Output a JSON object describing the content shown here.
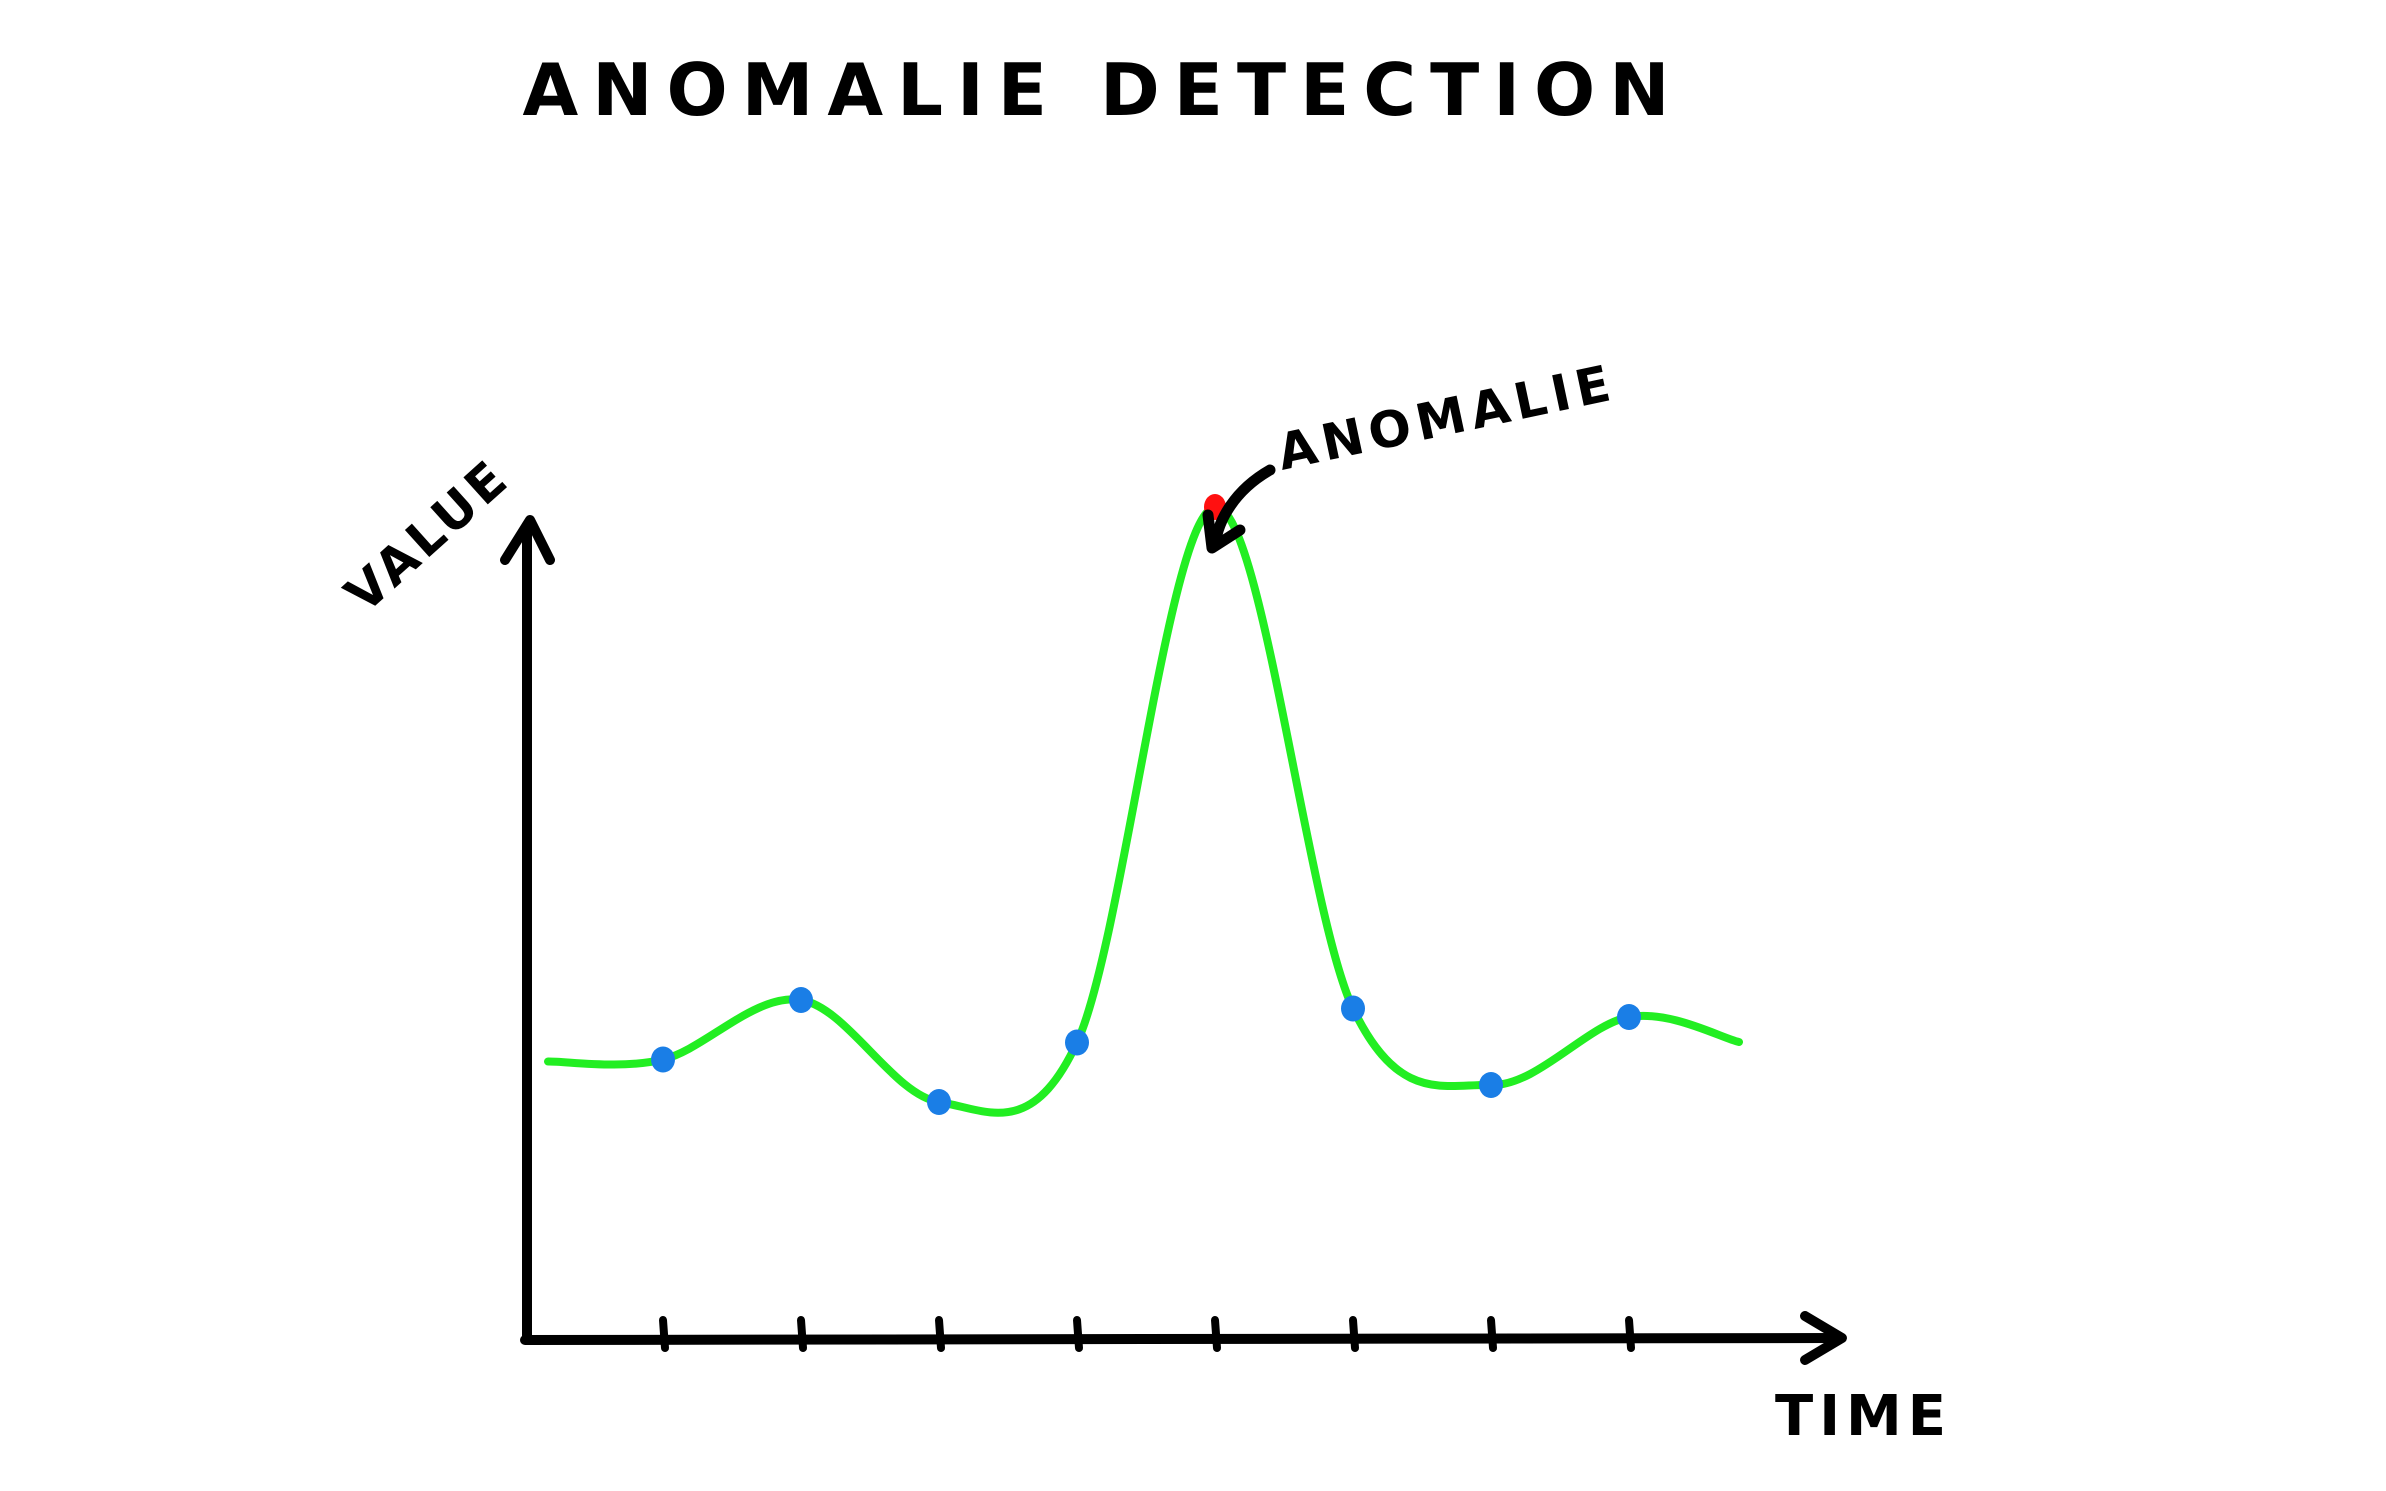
{
  "chart_data": {
    "type": "line",
    "title": "ANOMALIE DETECTION",
    "xlabel": "TIME",
    "ylabel": "VALUE",
    "x": [
      1,
      2,
      3,
      4,
      5,
      6,
      7,
      8
    ],
    "series": [
      {
        "values": [
          3.3,
          4.0,
          2.8,
          3.5,
          9.8,
          3.9,
          3.0,
          3.8
        ]
      }
    ],
    "point_colors": {
      "normal": "#1a7ee6",
      "anomaly": "#ff1010",
      "line": "#22ee22"
    },
    "anomaly_index": 4,
    "annotation": "ANOMALIE",
    "grid": false,
    "x_ticks": 8
  }
}
